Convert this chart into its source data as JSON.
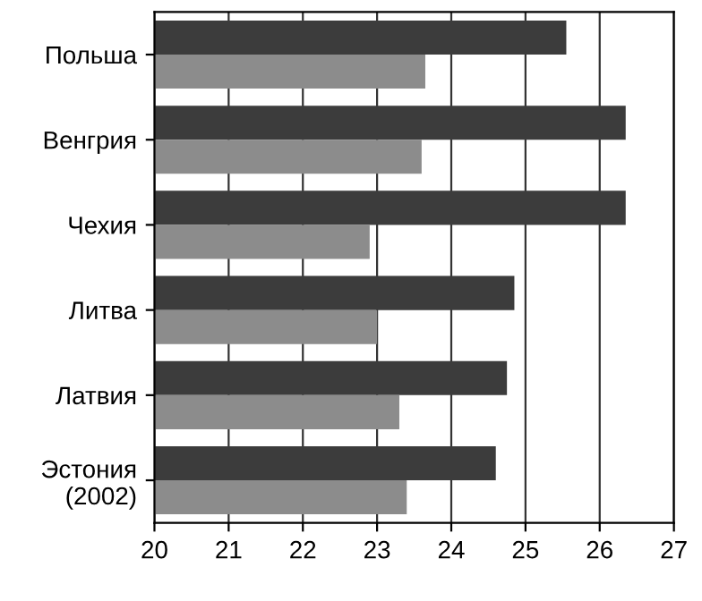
{
  "chart_data": {
    "type": "bar",
    "orientation": "horizontal",
    "categories": [
      "Польша",
      "Венгрия",
      "Чехия",
      "Литва",
      "Латвия",
      "Эстония\n(2002)"
    ],
    "series": [
      {
        "color": "#3c3c3c",
        "values": [
          25.55,
          26.35,
          26.35,
          24.85,
          24.75,
          24.6
        ]
      },
      {
        "color": "#8c8c8c",
        "values": [
          23.65,
          23.6,
          22.9,
          23.0,
          23.3,
          23.4
        ]
      }
    ],
    "xlim": [
      20,
      27
    ],
    "xticks": [
      20,
      21,
      22,
      23,
      24,
      25,
      26,
      27
    ],
    "grid": "x",
    "legend": false
  }
}
